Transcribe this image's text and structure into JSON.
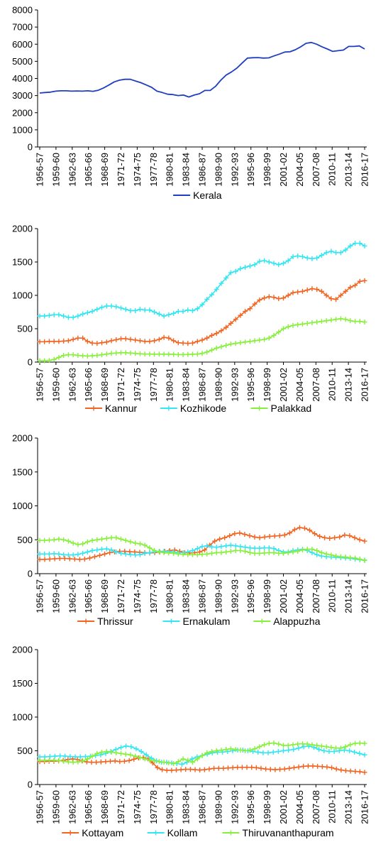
{
  "x_labels": [
    "1956-57",
    "1959-60",
    "1962-63",
    "1965-66",
    "1968-69",
    "1971-72",
    "1974-75",
    "1977-78",
    "1980-81",
    "1983-84",
    "1986-87",
    "1989-90",
    "1992-93",
    "1995-96",
    "1998-99",
    "2001-02",
    "2004-05",
    "2007-08",
    "2010-11",
    "2013-14",
    "2016-17"
  ],
  "colors": {
    "blue": "#1f3fbf",
    "orange": "#f26522",
    "cyan": "#33e6f2",
    "green": "#88f03c"
  },
  "chart_data": [
    {
      "type": "line",
      "ylim": [
        0,
        8000
      ],
      "yticks": [
        0,
        1000,
        2000,
        3000,
        4000,
        5000,
        6000,
        7000,
        8000
      ],
      "legend_position": "bottom",
      "series": [
        {
          "name": "Kerala",
          "color": "blue",
          "markers": false,
          "values": [
            3150,
            3180,
            3200,
            3260,
            3280,
            3280,
            3260,
            3270,
            3260,
            3280,
            3250,
            3310,
            3450,
            3620,
            3800,
            3900,
            3950,
            3950,
            3850,
            3750,
            3620,
            3480,
            3260,
            3180,
            3080,
            3060,
            3000,
            3030,
            2920,
            3030,
            3110,
            3300,
            3300,
            3540,
            3900,
            4200,
            4380,
            4600,
            4900,
            5190,
            5210,
            5220,
            5190,
            5200,
            5320,
            5420,
            5540,
            5560,
            5680,
            5850,
            6050,
            6100,
            6000,
            5850,
            5720,
            5580,
            5620,
            5660,
            5870,
            5870,
            5900,
            5720
          ]
        }
      ]
    },
    {
      "type": "line",
      "ylim": [
        0,
        2000
      ],
      "yticks": [
        0,
        500,
        1000,
        1500,
        2000
      ],
      "legend_position": "bottom",
      "series": [
        {
          "name": "Kannur",
          "color": "orange",
          "markers": true,
          "values": [
            305,
            305,
            310,
            310,
            310,
            315,
            320,
            340,
            360,
            360,
            310,
            285,
            280,
            290,
            300,
            320,
            335,
            350,
            350,
            340,
            330,
            320,
            310,
            310,
            320,
            340,
            370,
            360,
            320,
            290,
            285,
            280,
            285,
            310,
            330,
            360,
            400,
            430,
            470,
            520,
            580,
            640,
            700,
            760,
            800,
            870,
            930,
            960,
            980,
            970,
            950,
            960,
            1000,
            1040,
            1050,
            1060,
            1080,
            1100,
            1090,
            1060,
            1000,
            950,
            940,
            1000,
            1060,
            1120,
            1150,
            1210,
            1220
          ]
        },
        {
          "name": "Kozhikode",
          "color": "cyan",
          "markers": true,
          "values": [
            690,
            690,
            700,
            710,
            710,
            690,
            670,
            670,
            690,
            720,
            740,
            760,
            790,
            820,
            840,
            840,
            830,
            810,
            790,
            770,
            770,
            790,
            780,
            780,
            750,
            720,
            690,
            710,
            730,
            760,
            760,
            780,
            770,
            800,
            860,
            940,
            1010,
            1090,
            1180,
            1260,
            1340,
            1360,
            1400,
            1420,
            1440,
            1460,
            1510,
            1520,
            1500,
            1480,
            1460,
            1480,
            1520,
            1580,
            1590,
            1580,
            1560,
            1550,
            1560,
            1600,
            1640,
            1660,
            1640,
            1640,
            1680,
            1740,
            1780,
            1780,
            1740
          ]
        },
        {
          "name": "Palakkad",
          "color": "green",
          "markers": true,
          "values": [
            20,
            20,
            25,
            40,
            70,
            100,
            110,
            110,
            100,
            95,
            90,
            95,
            100,
            110,
            120,
            130,
            135,
            140,
            140,
            135,
            130,
            125,
            120,
            120,
            118,
            120,
            118,
            118,
            116,
            112,
            112,
            115,
            118,
            120,
            130,
            150,
            180,
            210,
            230,
            250,
            270,
            280,
            290,
            300,
            310,
            320,
            330,
            340,
            360,
            400,
            450,
            500,
            530,
            550,
            560,
            570,
            580,
            590,
            600,
            610,
            620,
            630,
            640,
            650,
            640,
            620,
            610,
            610,
            600
          ]
        }
      ]
    },
    {
      "type": "line",
      "ylim": [
        0,
        2000
      ],
      "yticks": [
        0,
        500,
        1000,
        1500,
        2000
      ],
      "legend_position": "bottom",
      "series": [
        {
          "name": "Thrissur",
          "color": "orange",
          "markers": true,
          "values": [
            210,
            210,
            215,
            220,
            225,
            225,
            220,
            215,
            210,
            215,
            230,
            250,
            270,
            290,
            310,
            320,
            330,
            330,
            325,
            320,
            315,
            310,
            305,
            310,
            320,
            330,
            340,
            350,
            330,
            310,
            305,
            310,
            320,
            350,
            420,
            480,
            510,
            530,
            560,
            590,
            600,
            580,
            560,
            540,
            530,
            540,
            550,
            555,
            560,
            570,
            600,
            650,
            680,
            670,
            640,
            590,
            550,
            530,
            520,
            530,
            540,
            570,
            560,
            530,
            500,
            480
          ]
        },
        {
          "name": "Ernakulam",
          "color": "cyan",
          "markers": true,
          "values": [
            290,
            290,
            290,
            295,
            290,
            280,
            275,
            275,
            285,
            300,
            320,
            340,
            350,
            360,
            365,
            350,
            320,
            300,
            290,
            280,
            275,
            280,
            300,
            310,
            320,
            330,
            330,
            325,
            320,
            310,
            310,
            320,
            340,
            370,
            400,
            410,
            395,
            390,
            400,
            410,
            420,
            410,
            400,
            390,
            380,
            375,
            375,
            380,
            380,
            370,
            340,
            320,
            320,
            340,
            350,
            360,
            340,
            310,
            280,
            260,
            250,
            245,
            240,
            235,
            230,
            225,
            215,
            205,
            200
          ]
        },
        {
          "name": "Alappuzha",
          "color": "green",
          "markers": true,
          "values": [
            490,
            490,
            495,
            500,
            510,
            500,
            480,
            450,
            430,
            440,
            470,
            490,
            500,
            510,
            520,
            530,
            530,
            510,
            490,
            470,
            450,
            440,
            420,
            380,
            340,
            320,
            310,
            305,
            300,
            290,
            285,
            280,
            280,
            280,
            285,
            290,
            300,
            310,
            310,
            320,
            330,
            340,
            340,
            330,
            310,
            300,
            300,
            305,
            310,
            310,
            300,
            300,
            310,
            320,
            330,
            350,
            360,
            360,
            340,
            310,
            290,
            275,
            260,
            250,
            245,
            235,
            230,
            215,
            195
          ]
        }
      ]
    },
    {
      "type": "line",
      "ylim": [
        0,
        2000
      ],
      "yticks": [
        0,
        500,
        1000,
        1500,
        2000
      ],
      "legend_position": "bottom",
      "series": [
        {
          "name": "Kottayam",
          "color": "orange",
          "markers": true,
          "values": [
            340,
            340,
            345,
            345,
            350,
            360,
            370,
            380,
            370,
            350,
            335,
            330,
            330,
            335,
            340,
            345,
            350,
            340,
            345,
            355,
            375,
            395,
            400,
            380,
            320,
            250,
            220,
            210,
            210,
            215,
            220,
            225,
            225,
            220,
            215,
            220,
            230,
            240,
            240,
            240,
            245,
            250,
            255,
            255,
            255,
            255,
            250,
            240,
            230,
            225,
            220,
            225,
            230,
            240,
            250,
            260,
            270,
            275,
            275,
            270,
            265,
            260,
            250,
            230,
            215,
            205,
            200,
            195,
            190,
            180
          ]
        },
        {
          "name": "Kollam",
          "color": "cyan",
          "markers": true,
          "values": [
            410,
            410,
            415,
            420,
            425,
            420,
            415,
            410,
            410,
            415,
            420,
            430,
            440,
            460,
            490,
            520,
            550,
            570,
            560,
            530,
            490,
            440,
            390,
            350,
            330,
            330,
            320,
            310,
            300,
            330,
            380,
            410,
            430,
            450,
            470,
            480,
            480,
            490,
            500,
            510,
            510,
            500,
            490,
            480,
            470,
            470,
            480,
            490,
            500,
            510,
            520,
            540,
            560,
            570,
            550,
            520,
            500,
            490,
            490,
            500,
            510,
            500,
            480,
            460,
            440
          ]
        },
        {
          "name": "Thiruvananthapuram",
          "color": "green",
          "markers": true,
          "values": [
            360,
            360,
            360,
            360,
            355,
            345,
            335,
            330,
            335,
            350,
            380,
            420,
            460,
            480,
            490,
            480,
            470,
            460,
            450,
            440,
            420,
            400,
            380,
            360,
            350,
            340,
            330,
            320,
            310,
            340,
            380,
            360,
            330,
            380,
            430,
            470,
            490,
            500,
            510,
            520,
            530,
            520,
            510,
            500,
            510,
            530,
            560,
            590,
            610,
            615,
            600,
            580,
            580,
            590,
            600,
            605,
            600,
            590,
            580,
            570,
            560,
            550,
            540,
            540,
            560,
            590,
            610,
            615,
            610
          ]
        }
      ]
    }
  ]
}
